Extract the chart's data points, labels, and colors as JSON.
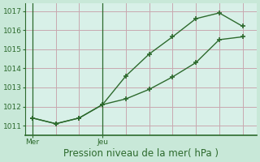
{
  "line1_x": [
    0,
    1,
    2,
    3,
    4,
    5,
    6,
    7,
    8,
    9
  ],
  "line1_y": [
    1011.4,
    1011.1,
    1011.4,
    1012.1,
    1013.6,
    1014.75,
    1015.65,
    1016.6,
    1016.9,
    1016.2
  ],
  "line2_x": [
    0,
    1,
    2,
    3,
    4,
    5,
    6,
    7,
    8,
    9
  ],
  "line2_y": [
    1011.4,
    1011.1,
    1011.4,
    1012.1,
    1012.4,
    1012.9,
    1013.55,
    1014.3,
    1015.5,
    1015.65
  ],
  "line_color": "#2d6a2d",
  "background_color": "#ceeae0",
  "plot_bg_color": "#d8f0e8",
  "grid_color": "#c8a8b0",
  "axis_color": "#2d6a2d",
  "outer_bg": "#c8e8d8",
  "xlabel": "Pression niveau de la mer( hPa )",
  "xtick_positions": [
    0,
    3
  ],
  "xtick_labels": [
    "Mer",
    "Jeu"
  ],
  "ylim": [
    1010.5,
    1017.4
  ],
  "xlim": [
    -0.3,
    9.6
  ],
  "ytick_values": [
    1011,
    1012,
    1013,
    1014,
    1015,
    1016,
    1017
  ],
  "marker": "P",
  "markersize": 4,
  "linewidth": 1.0,
  "xlabel_fontsize": 8.5,
  "tick_fontsize": 6.5,
  "num_vgrid": 10
}
